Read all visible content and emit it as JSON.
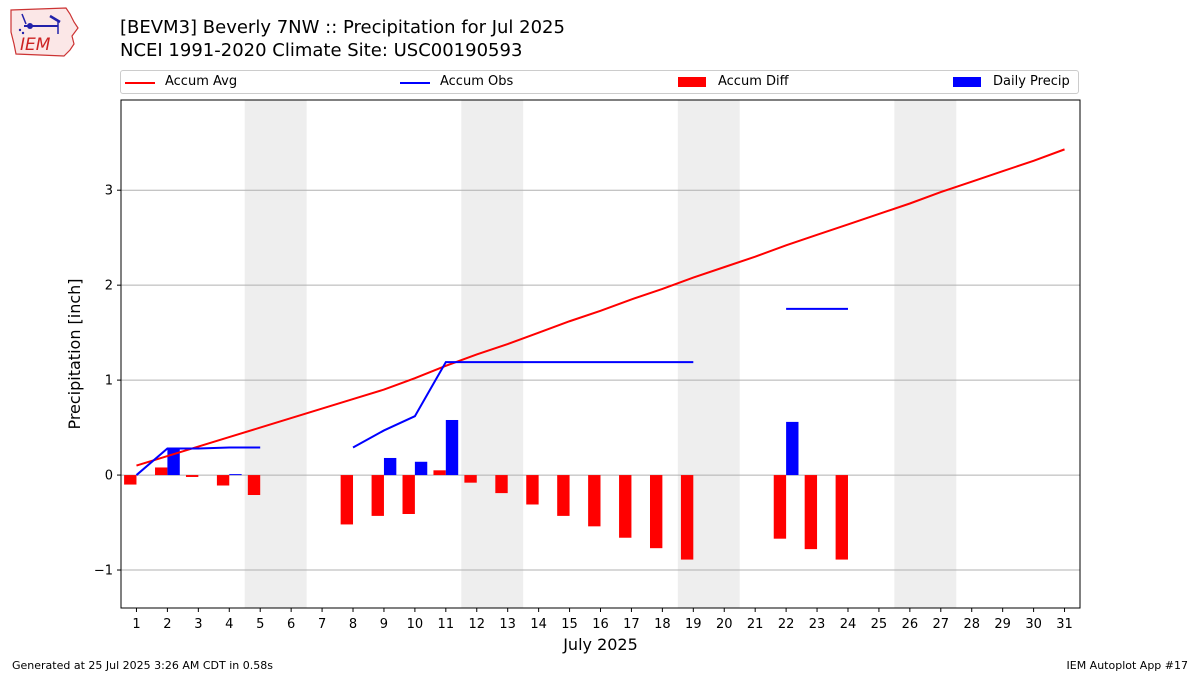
{
  "logo": {
    "text": "IEM"
  },
  "title": {
    "line1": "[BEVM3] Beverly 7NW :: Precipitation for Jul 2025",
    "line2": "NCEI 1991-2020 Climate Site: USC00190593"
  },
  "legend": {
    "placement": "top, above plot",
    "items": [
      {
        "label": "Accum Avg",
        "kind": "line",
        "color": "#ff0000"
      },
      {
        "label": "Accum Obs",
        "kind": "line",
        "color": "#0000ff"
      },
      {
        "label": "Accum Diff",
        "kind": "bar",
        "color": "#ff0000"
      },
      {
        "label": "Daily Precip",
        "kind": "bar",
        "color": "#0000ff"
      }
    ]
  },
  "footer": {
    "left": "Generated at 25 Jul 2025 3:26 AM CDT in 0.58s",
    "right": "IEM Autoplot App #17"
  },
  "chart_data": {
    "type": "bar",
    "xlabel": "July 2025",
    "ylabel": "Precipitation [inch]",
    "xlim": [
      0.5,
      31.5
    ],
    "ylim": [
      -1.4,
      3.95
    ],
    "x_ticks": [
      "1",
      "2",
      "3",
      "4",
      "5",
      "6",
      "7",
      "8",
      "9",
      "10",
      "11",
      "12",
      "13",
      "14",
      "15",
      "16",
      "17",
      "18",
      "19",
      "20",
      "21",
      "22",
      "23",
      "24",
      "25",
      "26",
      "27",
      "28",
      "29",
      "30",
      "31"
    ],
    "y_ticks": [
      -1,
      0,
      1,
      2,
      3
    ],
    "y_tick_labels": [
      "−1",
      "0",
      "1",
      "2",
      "3"
    ],
    "grid": "horizontal",
    "weekend_shading": [
      [
        5,
        6
      ],
      [
        12,
        13
      ],
      [
        19,
        20
      ],
      [
        26,
        27
      ]
    ],
    "shade_color": "#eeeeee",
    "series": [
      {
        "name": "Accum Avg",
        "type": "line",
        "color": "#ff0000",
        "x": [
          1,
          2,
          3,
          4,
          5,
          6,
          7,
          8,
          9,
          10,
          11,
          12,
          13,
          14,
          15,
          16,
          17,
          18,
          19,
          20,
          21,
          22,
          23,
          24,
          25,
          26,
          27,
          28,
          29,
          30,
          31
        ],
        "values": [
          0.1,
          0.2,
          0.3,
          0.4,
          0.5,
          0.6,
          0.7,
          0.8,
          0.9,
          1.02,
          1.15,
          1.27,
          1.38,
          1.5,
          1.62,
          1.73,
          1.85,
          1.96,
          2.08,
          2.19,
          2.3,
          2.42,
          2.53,
          2.64,
          2.75,
          2.86,
          2.98,
          3.09,
          3.2,
          3.31,
          3.43
        ]
      },
      {
        "name": "Accum Obs",
        "type": "line",
        "color": "#0000ff",
        "segments": [
          {
            "x": [
              1,
              2,
              3,
              4,
              5
            ],
            "values": [
              0.0,
              0.28,
              0.28,
              0.29,
              0.29
            ]
          },
          {
            "x": [
              8,
              9,
              10,
              11,
              12,
              13,
              14,
              15,
              16,
              17,
              18,
              19
            ],
            "values": [
              0.29,
              0.47,
              0.62,
              1.19,
              1.19,
              1.19,
              1.19,
              1.19,
              1.19,
              1.19,
              1.19,
              1.19
            ]
          },
          {
            "x": [
              22,
              23,
              24
            ],
            "values": [
              1.75,
              1.75,
              1.75
            ]
          }
        ]
      },
      {
        "name": "Accum Diff",
        "type": "bar",
        "color": "#ff0000",
        "x": [
          1,
          2,
          3,
          4,
          5,
          8,
          9,
          10,
          11,
          12,
          13,
          14,
          15,
          16,
          17,
          18,
          19,
          22,
          23,
          24
        ],
        "values": [
          -0.1,
          0.08,
          -0.02,
          -0.11,
          -0.21,
          -0.52,
          -0.43,
          -0.41,
          0.05,
          -0.08,
          -0.19,
          -0.31,
          -0.43,
          -0.54,
          -0.66,
          -0.77,
          -0.89,
          -0.67,
          -0.78,
          -0.89
        ]
      },
      {
        "name": "Daily Precip",
        "type": "bar",
        "color": "#0000ff",
        "x": [
          2,
          4,
          9,
          10,
          11,
          22
        ],
        "values": [
          0.28,
          0.01,
          0.18,
          0.14,
          0.58,
          0.56
        ]
      }
    ]
  }
}
